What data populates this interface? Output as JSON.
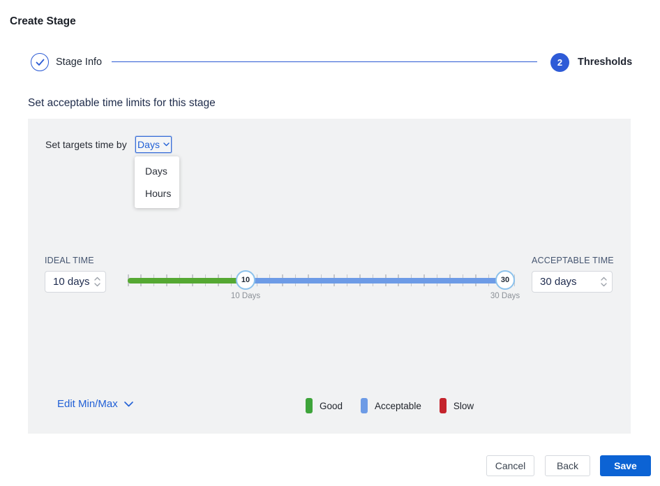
{
  "page": {
    "title": "Create Stage"
  },
  "stepper": {
    "step1_label": "Stage Info",
    "step2_label": "Thresholds",
    "step2_number": "2"
  },
  "section": {
    "heading": "Set acceptable time limits for this stage"
  },
  "targets": {
    "label": "Set targets time by",
    "selected": "Days",
    "options": [
      "Days",
      "Hours"
    ]
  },
  "ideal": {
    "label": "IDEAL TIME",
    "value": "10 days"
  },
  "acceptable": {
    "label": "ACCEPTABLE TIME",
    "value": "30 days"
  },
  "slider": {
    "min_handle": "10",
    "max_handle": "30",
    "min_label": "10 Days",
    "max_label": "30 Days",
    "tick_count": 31
  },
  "edit_minmax": {
    "label": "Edit Min/Max"
  },
  "legend": {
    "items": [
      {
        "label": "Good",
        "color": "#3ea43a"
      },
      {
        "label": "Acceptable",
        "color": "#6d9be6"
      },
      {
        "label": "Slow",
        "color": "#c4242c"
      }
    ]
  },
  "footer": {
    "cancel": "Cancel",
    "back": "Back",
    "save": "Save"
  },
  "colors": {
    "accent_blue": "#2e5bd7",
    "save_blue": "#0c63d4",
    "link_blue": "#2160d6",
    "track_green": "#55a832",
    "track_blue": "#6d9be6",
    "panel_bg": "#f1f2f3"
  }
}
